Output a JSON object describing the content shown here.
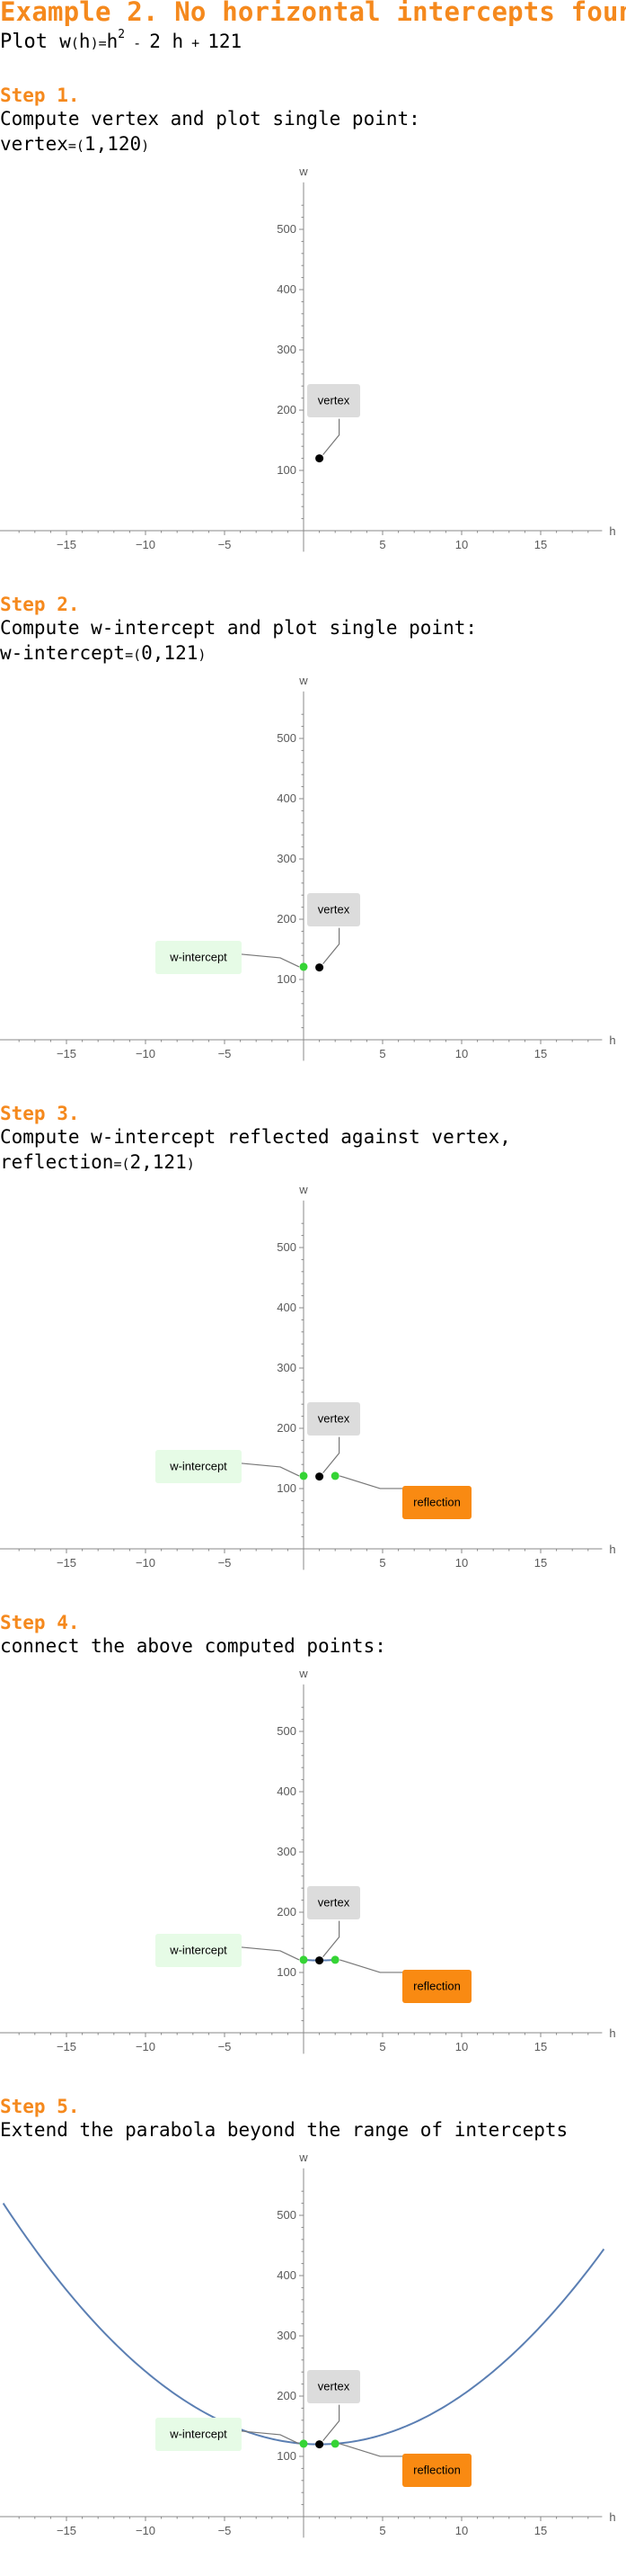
{
  "page": {
    "title": "Example 2. No horizontal intercepts found",
    "plot_prefix": "Plot ",
    "function_name": "w",
    "function_arg": "h",
    "expr_base": "h",
    "expr_exp": "2",
    "expr_op1": " - ",
    "expr_term2": "2 h",
    "expr_op2": " + ",
    "expr_const": "121"
  },
  "steps": [
    {
      "label": "Step 1.",
      "lines": [
        {
          "text": "Compute vertex and plot single point:"
        },
        {
          "pre": "vertex",
          "eq": "=",
          "lp": "(",
          "val": "1,120",
          "rp": ")"
        }
      ]
    },
    {
      "label": "Step 2.",
      "lines": [
        {
          "text": "Compute w-intercept and plot single point:"
        },
        {
          "pre": "w-intercept",
          "eq": "=",
          "lp": "(",
          "val": "0,121",
          "rp": ")"
        }
      ]
    },
    {
      "label": "Step 3.",
      "lines": [
        {
          "text": "Compute w-intercept reflected against vertex,"
        },
        {
          "pre": "reflection",
          "eq": "=",
          "lp": "(",
          "val": "2,121",
          "rp": ")"
        }
      ]
    },
    {
      "label": "Step 4.",
      "lines": [
        {
          "text": "connect the above computed points:"
        }
      ]
    },
    {
      "label": "Step 5.",
      "lines": [
        {
          "text": "Extend the parabola beyond the range of intercepts"
        }
      ]
    }
  ],
  "colors": {
    "accent": "#f5891d",
    "axis": "#888888",
    "curve": "#5b7fb3",
    "intercept_point": "#35d435",
    "vertex_point": "#000000",
    "vertex_box": "#dcdcdc",
    "intercept_box": "#e6fbe6",
    "reflection_box": "#f98a12"
  },
  "chart_data": [
    {
      "type": "scatter",
      "step": 1,
      "xlabel": "h",
      "ylabel": "w",
      "xlim": [
        -19,
        19
      ],
      "ylim": [
        -5,
        560
      ],
      "xticks": [
        -15,
        -10,
        -5,
        5,
        10,
        15
      ],
      "yticks": [
        100,
        200,
        300,
        400,
        500
      ],
      "tick_labels_x": [
        "−15",
        "−10",
        "−5",
        "5",
        "10",
        "15"
      ],
      "tick_labels_y": [
        "100",
        "200",
        "300",
        "400",
        "500"
      ],
      "grid": false,
      "points": [
        {
          "x": 1,
          "y": 120,
          "kind": "vertex"
        }
      ],
      "callouts": [
        {
          "label": "vertex",
          "kind": "vertex",
          "x": 1,
          "y": 120
        }
      ],
      "curve": null
    },
    {
      "type": "scatter",
      "step": 2,
      "xlabel": "h",
      "ylabel": "w",
      "xlim": [
        -19,
        19
      ],
      "ylim": [
        -5,
        560
      ],
      "xticks": [
        -15,
        -10,
        -5,
        5,
        10,
        15
      ],
      "yticks": [
        100,
        200,
        300,
        400,
        500
      ],
      "tick_labels_x": [
        "−15",
        "−10",
        "−5",
        "5",
        "10",
        "15"
      ],
      "tick_labels_y": [
        "100",
        "200",
        "300",
        "400",
        "500"
      ],
      "grid": false,
      "points": [
        {
          "x": 1,
          "y": 120,
          "kind": "vertex"
        },
        {
          "x": 0,
          "y": 121,
          "kind": "intercept"
        }
      ],
      "callouts": [
        {
          "label": "vertex",
          "kind": "vertex",
          "x": 1,
          "y": 120
        },
        {
          "label": "w-intercept",
          "kind": "intercept",
          "x": 0,
          "y": 121
        }
      ],
      "curve": null
    },
    {
      "type": "scatter",
      "step": 3,
      "xlabel": "h",
      "ylabel": "w",
      "xlim": [
        -19,
        19
      ],
      "ylim": [
        -5,
        560
      ],
      "xticks": [
        -15,
        -10,
        -5,
        5,
        10,
        15
      ],
      "yticks": [
        100,
        200,
        300,
        400,
        500
      ],
      "tick_labels_x": [
        "−15",
        "−10",
        "−5",
        "5",
        "10",
        "15"
      ],
      "tick_labels_y": [
        "100",
        "200",
        "300",
        "400",
        "500"
      ],
      "grid": false,
      "points": [
        {
          "x": 1,
          "y": 120,
          "kind": "vertex"
        },
        {
          "x": 0,
          "y": 121,
          "kind": "intercept"
        },
        {
          "x": 2,
          "y": 121,
          "kind": "intercept"
        }
      ],
      "callouts": [
        {
          "label": "vertex",
          "kind": "vertex",
          "x": 1,
          "y": 120
        },
        {
          "label": "w-intercept",
          "kind": "intercept",
          "x": 0,
          "y": 121
        },
        {
          "label": "reflection",
          "kind": "reflection",
          "x": 2,
          "y": 121
        }
      ],
      "curve": null
    },
    {
      "type": "line",
      "step": 4,
      "xlabel": "h",
      "ylabel": "w",
      "xlim": [
        -19,
        19
      ],
      "ylim": [
        -5,
        560
      ],
      "xticks": [
        -15,
        -10,
        -5,
        5,
        10,
        15
      ],
      "yticks": [
        100,
        200,
        300,
        400,
        500
      ],
      "tick_labels_x": [
        "−15",
        "−10",
        "−5",
        "5",
        "10",
        "15"
      ],
      "tick_labels_y": [
        "100",
        "200",
        "300",
        "400",
        "500"
      ],
      "grid": false,
      "points": [
        {
          "x": 1,
          "y": 120,
          "kind": "vertex"
        },
        {
          "x": 0,
          "y": 121,
          "kind": "intercept"
        },
        {
          "x": 2,
          "y": 121,
          "kind": "intercept"
        }
      ],
      "callouts": [
        {
          "label": "vertex",
          "kind": "vertex",
          "x": 1,
          "y": 120
        },
        {
          "label": "w-intercept",
          "kind": "intercept",
          "x": 0,
          "y": 121
        },
        {
          "label": "reflection",
          "kind": "reflection",
          "x": 2,
          "y": 121
        }
      ],
      "curve": {
        "function": "h^2 - 2 h + 121",
        "from": 0,
        "to": 2
      }
    },
    {
      "type": "line",
      "step": 5,
      "xlabel": "h",
      "ylabel": "w",
      "xlim": [
        -19,
        19
      ],
      "ylim": [
        -5,
        560
      ],
      "xticks": [
        -15,
        -10,
        -5,
        5,
        10,
        15
      ],
      "yticks": [
        100,
        200,
        300,
        400,
        500
      ],
      "tick_labels_x": [
        "−15",
        "−10",
        "−5",
        "5",
        "10",
        "15"
      ],
      "tick_labels_y": [
        "100",
        "200",
        "300",
        "400",
        "500"
      ],
      "grid": false,
      "points": [
        {
          "x": 1,
          "y": 120,
          "kind": "vertex"
        },
        {
          "x": 0,
          "y": 121,
          "kind": "intercept"
        },
        {
          "x": 2,
          "y": 121,
          "kind": "intercept"
        }
      ],
      "callouts": [
        {
          "label": "vertex",
          "kind": "vertex",
          "x": 1,
          "y": 120
        },
        {
          "label": "w-intercept",
          "kind": "intercept",
          "x": 0,
          "y": 121
        },
        {
          "label": "reflection",
          "kind": "reflection",
          "x": 2,
          "y": 121
        }
      ],
      "curve": {
        "function": "h^2 - 2 h + 121",
        "from": -19,
        "to": 19
      }
    }
  ]
}
